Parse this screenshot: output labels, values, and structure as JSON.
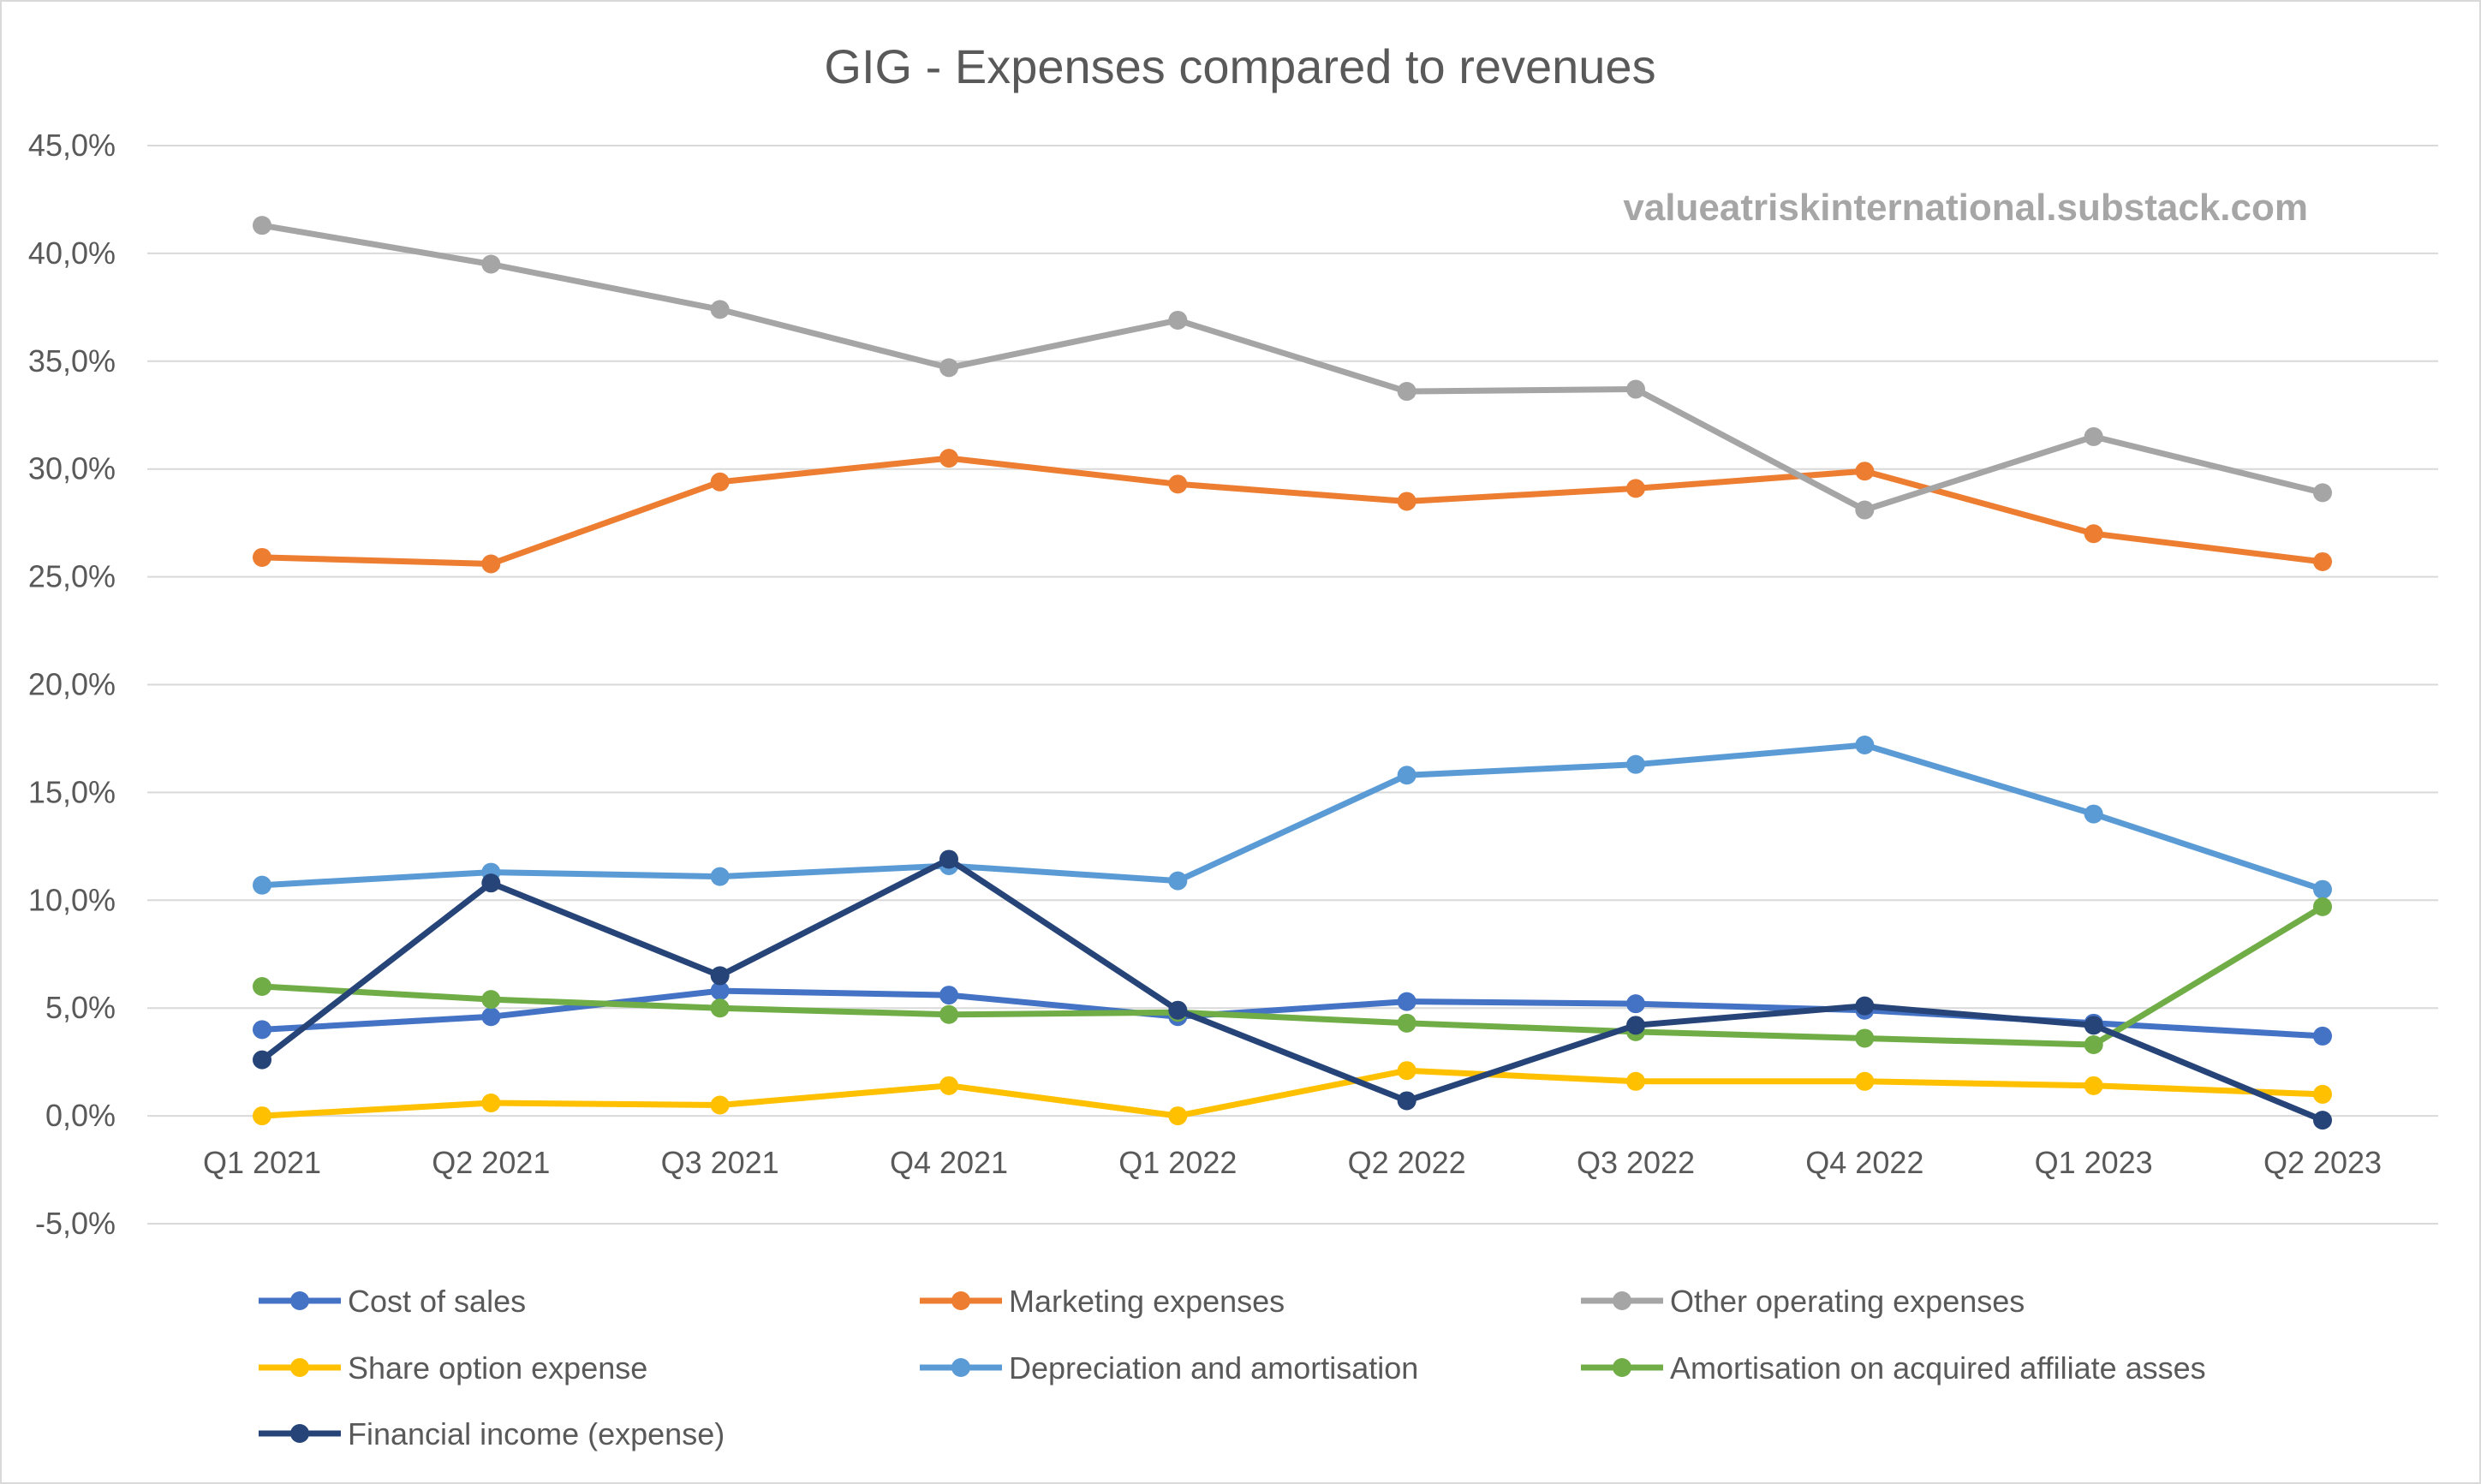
{
  "chart_data": {
    "type": "line",
    "title": "GIG - Expenses compared to revenues",
    "watermark": "valueatriskinternational.substack.com",
    "categories": [
      "Q1 2021",
      "Q2 2021",
      "Q3 2021",
      "Q4 2021",
      "Q1 2022",
      "Q2 2022",
      "Q3 2022",
      "Q4 2022",
      "Q1 2023",
      "Q2 2023"
    ],
    "ylim": [
      -5,
      45
    ],
    "yticks": [
      -5,
      0,
      5,
      10,
      15,
      20,
      25,
      30,
      35,
      40,
      45
    ],
    "ytick_labels": [
      "-5,0%",
      "0,0%",
      "5,0%",
      "10,0%",
      "15,0%",
      "20,0%",
      "25,0%",
      "30,0%",
      "35,0%",
      "40,0%",
      "45,0%"
    ],
    "grid": true,
    "legend_position": "bottom",
    "series": [
      {
        "name": "Cost of sales",
        "color": "#4472c4",
        "values": [
          4.0,
          4.6,
          5.8,
          5.6,
          4.6,
          5.3,
          5.2,
          4.9,
          4.3,
          3.7
        ]
      },
      {
        "name": "Marketing expenses",
        "color": "#ed7d31",
        "values": [
          25.9,
          25.6,
          29.4,
          30.5,
          29.3,
          28.5,
          29.1,
          29.9,
          27.0,
          25.7
        ]
      },
      {
        "name": "Other operating expenses",
        "color": "#a5a5a5",
        "values": [
          41.3,
          39.5,
          37.4,
          34.7,
          36.9,
          33.6,
          33.7,
          28.1,
          31.5,
          28.9
        ]
      },
      {
        "name": "Share option expense",
        "color": "#ffc000",
        "values": [
          0.0,
          0.6,
          0.5,
          1.4,
          0.0,
          2.1,
          1.6,
          1.6,
          1.4,
          1.0
        ]
      },
      {
        "name": "Depreciation and amortisation",
        "color": "#5b9bd5",
        "values": [
          10.7,
          11.3,
          11.1,
          11.6,
          10.9,
          15.8,
          16.3,
          17.2,
          14.0,
          10.5
        ]
      },
      {
        "name": "Amortisation on acquired affiliate asses",
        "color": "#70ad47",
        "values": [
          6.0,
          5.4,
          5.0,
          4.7,
          4.8,
          4.3,
          3.9,
          3.6,
          3.3,
          9.7
        ]
      },
      {
        "name": "Financial income (expense)",
        "color": "#264478",
        "values": [
          2.6,
          10.8,
          6.5,
          11.9,
          4.9,
          0.7,
          4.2,
          5.1,
          4.2,
          -0.2
        ]
      }
    ]
  }
}
